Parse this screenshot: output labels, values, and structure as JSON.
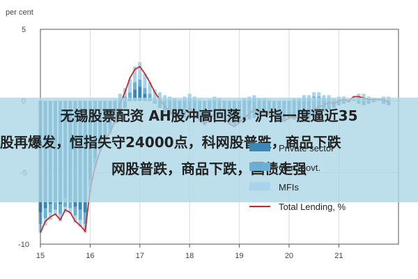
{
  "chart_data": {
    "type": "bar",
    "title": "",
    "unit_label": "per cent",
    "ylim": [
      -10,
      5
    ],
    "y_ticks": [
      5,
      0,
      -5,
      -10
    ],
    "x_ticks": [
      "15",
      "16",
      "17",
      "18",
      "19",
      "20",
      "21"
    ],
    "x_range": [
      2015,
      2022.2
    ],
    "grid": true,
    "legend_position": "bottom-right",
    "colors": {
      "private": "#3a87b5",
      "gov": "#6ab0d4",
      "mfis": "#a8d3ea",
      "total": "#c62828",
      "grid": "#d9d9d9",
      "axis": "#555555"
    },
    "legend": [
      {
        "label": "Private sector",
        "kind": "bar",
        "color": "#3a87b5"
      },
      {
        "label": "Gen. govt.",
        "kind": "bar",
        "color": "#6ab0d4"
      },
      {
        "label": "MFIs",
        "kind": "bar",
        "color": "#a8d3ea"
      },
      {
        "label": "Total Lending, %",
        "kind": "line",
        "color": "#c62828"
      }
    ],
    "x": [
      2015.0,
      2015.1,
      2015.2,
      2015.3,
      2015.4,
      2015.5,
      2015.6,
      2015.7,
      2015.8,
      2015.9,
      2016.0,
      2016.1,
      2016.2,
      2016.3,
      2016.4,
      2016.5,
      2016.6,
      2016.7,
      2016.8,
      2016.9,
      2017.0,
      2017.1,
      2017.2,
      2017.3,
      2017.4,
      2017.5,
      2017.6,
      2017.7,
      2017.8,
      2017.9,
      2018.0,
      2018.1,
      2018.2,
      2018.3,
      2018.4,
      2018.5,
      2018.6,
      2018.7,
      2018.8,
      2018.9,
      2019.0,
      2019.1,
      2019.2,
      2019.3,
      2019.4,
      2019.5,
      2019.6,
      2019.7,
      2019.8,
      2019.9,
      2020.0,
      2020.1,
      2020.2,
      2020.3,
      2020.4,
      2020.5,
      2020.6,
      2020.7,
      2020.8,
      2020.9,
      2021.0,
      2021.1,
      2021.2,
      2021.3,
      2021.4,
      2021.5,
      2021.6,
      2021.7,
      2021.8,
      2021.9,
      2022.0
    ],
    "series": [
      {
        "name": "Private sector",
        "values": [
          -7.8,
          -7.5,
          -7.2,
          -7.0,
          -7.2,
          -6.8,
          -7.0,
          -7.4,
          -7.6,
          -7.8,
          -5.5,
          -4.0,
          -3.0,
          -2.5,
          -2.0,
          -1.5,
          -1.0,
          -0.5,
          0.2,
          0.8,
          1.0,
          0.5,
          0.2,
          -0.2,
          -0.5,
          -0.8,
          -1.0,
          -1.2,
          -1.4,
          -1.2,
          -1.0,
          -1.2,
          -1.4,
          -1.6,
          -1.5,
          -1.3,
          -1.2,
          -1.3,
          -1.5,
          -1.6,
          -1.5,
          -1.4,
          -1.3,
          -1.2,
          -1.1,
          -1.0,
          -1.0,
          -1.1,
          -1.2,
          -1.3,
          -1.2,
          -1.3,
          -1.4,
          -1.5,
          -1.3,
          -1.2,
          -1.0,
          -0.8,
          -0.6,
          -0.5,
          -0.3,
          -0.2,
          -0.1,
          0.0,
          -0.2,
          -0.3,
          -0.2,
          -0.1,
          0.0,
          -0.2,
          -0.3
        ]
      },
      {
        "name": "Gen. govt.",
        "values": [
          -0.8,
          -0.7,
          -0.6,
          -0.6,
          -0.7,
          -0.6,
          -0.5,
          -0.6,
          -0.7,
          -0.8,
          -0.5,
          -0.4,
          -0.3,
          -0.2,
          -0.2,
          -0.1,
          0.2,
          0.3,
          0.4,
          0.5,
          0.5,
          0.4,
          0.3,
          0.2,
          0.2,
          0.1,
          0.1,
          0.1,
          0.0,
          0.1,
          0.2,
          0.1,
          0.0,
          -0.1,
          0.0,
          0.1,
          0.1,
          0.0,
          -0.1,
          -0.1,
          0.0,
          0.1,
          0.1,
          0.2,
          0.1,
          0.1,
          0.0,
          0.0,
          -0.1,
          -0.1,
          0.0,
          0.1,
          0.1,
          0.2,
          0.2,
          0.3,
          0.3,
          0.2,
          0.2,
          0.1,
          0.1,
          0.1,
          0.0,
          0.1,
          0.2,
          0.2,
          0.1,
          0.1,
          0.0,
          0.1,
          0.1
        ]
      },
      {
        "name": "MFIs",
        "values": [
          -0.6,
          -0.5,
          -0.5,
          -0.4,
          -0.5,
          -0.4,
          -0.4,
          -0.5,
          -0.5,
          -0.6,
          -0.4,
          -0.3,
          -0.2,
          -0.2,
          -0.1,
          0.1,
          0.3,
          0.6,
          0.9,
          1.1,
          1.2,
          1.0,
          0.8,
          0.6,
          0.4,
          0.3,
          0.2,
          0.1,
          0.1,
          0.2,
          0.3,
          0.2,
          0.1,
          0.0,
          0.1,
          0.2,
          0.1,
          0.0,
          0.0,
          -0.1,
          0.0,
          0.1,
          0.2,
          0.2,
          0.1,
          0.1,
          0.1,
          0.0,
          0.0,
          -0.1,
          0.0,
          0.1,
          0.1,
          0.2,
          0.2,
          0.3,
          0.3,
          0.2,
          0.2,
          0.1,
          0.2,
          0.2,
          0.1,
          0.2,
          0.3,
          0.3,
          0.2,
          0.1,
          0.1,
          0.2,
          0.2
        ]
      },
      {
        "name": "Total Lending, %",
        "values": [
          -9.2,
          -8.4,
          -8.1,
          -7.9,
          -8.3,
          -7.6,
          -7.8,
          -8.4,
          -8.7,
          -9.1,
          -6.2,
          -4.6,
          -3.5,
          -2.8,
          -2.2,
          -1.4,
          -0.2,
          0.6,
          1.6,
          2.2,
          2.4,
          1.9,
          1.3,
          0.6,
          0.1,
          -0.4,
          -0.7,
          -1.0,
          -1.3,
          -0.9,
          -0.5,
          -0.8,
          -1.3,
          -1.6,
          -1.3,
          -0.9,
          -0.8,
          -1.2,
          -1.6,
          -1.8,
          -1.5,
          -1.2,
          -0.9,
          -0.6,
          -0.8,
          -0.6,
          -0.9,
          -1.1,
          -1.3,
          -1.4,
          -1.2,
          -1.1,
          -1.2,
          -1.1,
          -0.9,
          -0.6,
          -0.4,
          -0.3,
          -0.1,
          -0.2,
          0.0,
          0.1,
          0.0,
          0.3,
          0.3,
          0.2,
          0.1,
          0.1,
          0.1,
          0.1,
          -0.1
        ]
      }
    ]
  },
  "banner": {
    "line1": "无锡股票配资 AH股冲高回落，沪指一度逼近35",
    "line2": "股再爆发，恒指失守24000点，科网股普跌，商品下跌",
    "line3": "网股普跌，商品下跌，国债走强"
  }
}
